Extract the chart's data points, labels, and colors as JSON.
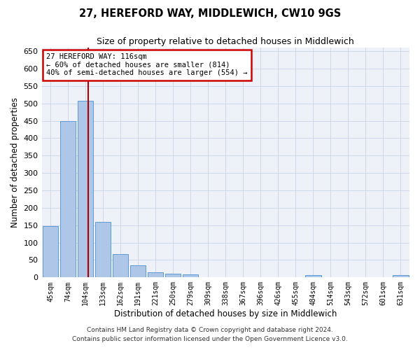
{
  "title": "27, HEREFORD WAY, MIDDLEWICH, CW10 9GS",
  "subtitle": "Size of property relative to detached houses in Middlewich",
  "xlabel": "Distribution of detached houses by size in Middlewich",
  "ylabel": "Number of detached properties",
  "categories": [
    "45sqm",
    "74sqm",
    "104sqm",
    "133sqm",
    "162sqm",
    "191sqm",
    "221sqm",
    "250sqm",
    "279sqm",
    "309sqm",
    "338sqm",
    "367sqm",
    "396sqm",
    "426sqm",
    "455sqm",
    "484sqm",
    "514sqm",
    "543sqm",
    "572sqm",
    "601sqm",
    "631sqm"
  ],
  "values": [
    148,
    450,
    508,
    160,
    68,
    35,
    15,
    10,
    8,
    0,
    0,
    0,
    0,
    0,
    0,
    7,
    0,
    0,
    0,
    0,
    6
  ],
  "bar_color": "#aec6e8",
  "bar_edge_color": "#5b9bd5",
  "grid_color": "#c8d4e8",
  "background_color": "#eef2f8",
  "vline_x": 2.17,
  "vline_color": "#aa0000",
  "annotation_text": "27 HEREFORD WAY: 116sqm\n← 60% of detached houses are smaller (814)\n40% of semi-detached houses are larger (554) →",
  "annotation_box_color": "#cc0000",
  "ylim": [
    0,
    660
  ],
  "yticks": [
    0,
    50,
    100,
    150,
    200,
    250,
    300,
    350,
    400,
    450,
    500,
    550,
    600,
    650
  ],
  "footnote1": "Contains HM Land Registry data © Crown copyright and database right 2024.",
  "footnote2": "Contains public sector information licensed under the Open Government Licence v3.0."
}
